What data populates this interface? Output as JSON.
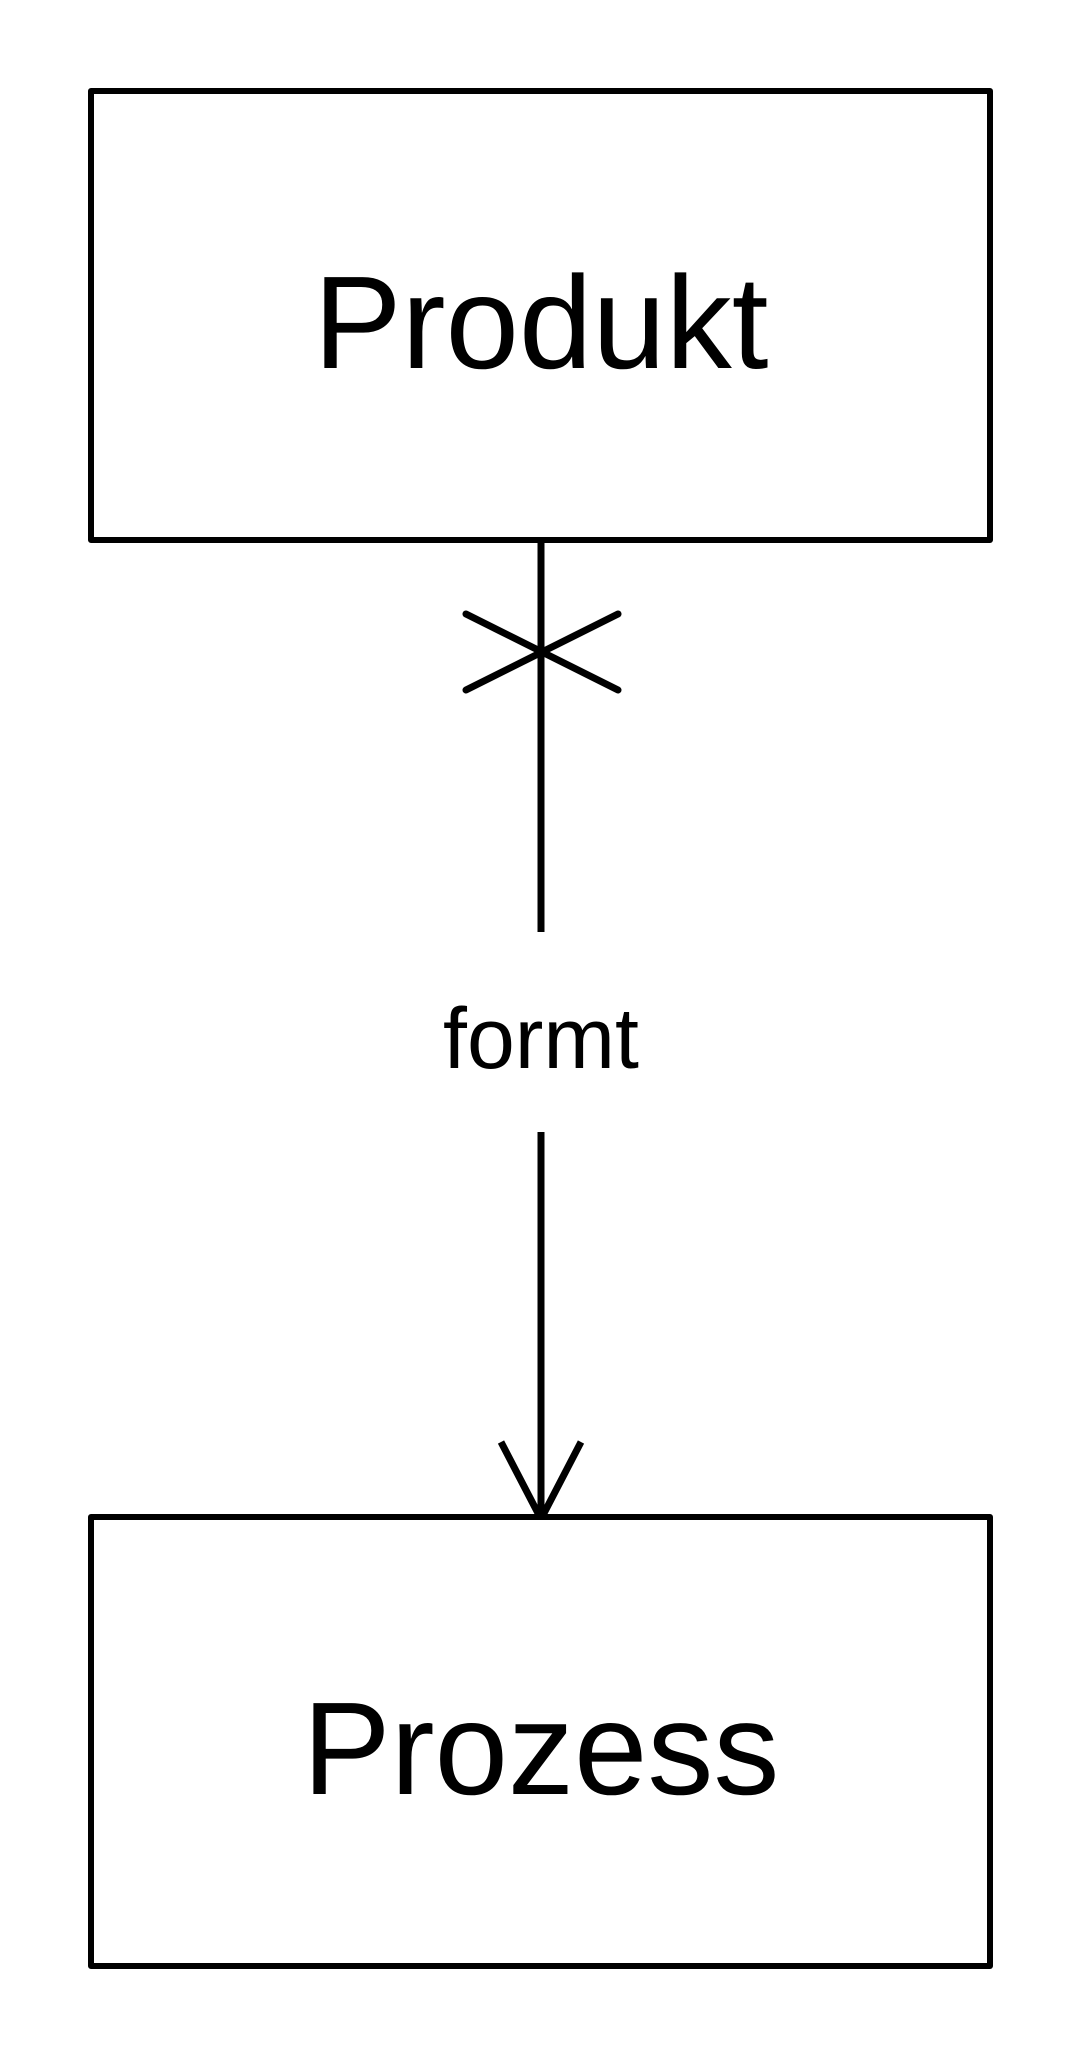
{
  "diagram": {
    "entities": {
      "top": {
        "label": "Produkt"
      },
      "bottom": {
        "label": "Prozess"
      }
    },
    "relation": {
      "label": "formt",
      "source_marker": "cross-icon",
      "target_marker": "open-arrow-icon"
    },
    "colors": {
      "stroke": "#000000",
      "background": "#ffffff"
    }
  }
}
